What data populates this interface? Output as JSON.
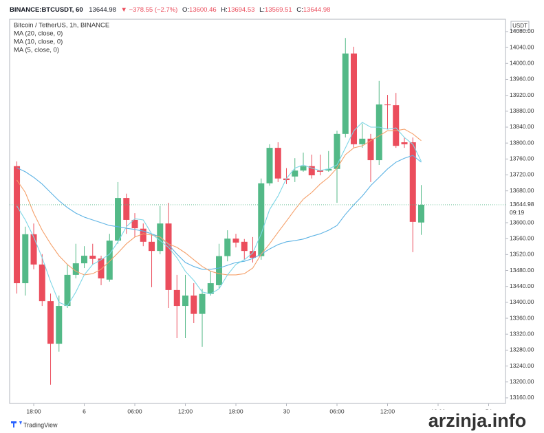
{
  "chart_data": {
    "type": "candlestick",
    "header": {
      "symbol": "BINANCE:BTCUSDT, 60",
      "last": "13644.98",
      "change": "▼ −378.55 (−2.7%)",
      "o_label": "O:",
      "o_value": "13600.46",
      "h_label": "H:",
      "h_value": "13694.53",
      "l_label": "L:",
      "l_value": "13569.51",
      "c_label": "C:",
      "c_value": "13644.98"
    },
    "title": "Bitcoin / TetherUS, 1h, BINANCE",
    "currency": "USDT",
    "countdown": "09:19",
    "last_price": 13644.98,
    "brand": "TradingView",
    "watermark": "arzinja.info",
    "up_color": "#53b987",
    "down_color": "#eb4d5c",
    "x": [
      -2,
      -1,
      0,
      1,
      2,
      3,
      4,
      5,
      6,
      7,
      8,
      9,
      10,
      11,
      12,
      13,
      14,
      15,
      16,
      17,
      18,
      19,
      20,
      21,
      22,
      23,
      24,
      25,
      26,
      27,
      28,
      29,
      30,
      31,
      32,
      33,
      34,
      35,
      36,
      37,
      38,
      39,
      40,
      41,
      42,
      43,
      44,
      45,
      46
    ],
    "open": [
      13742,
      13448,
      13571,
      13495,
      13403,
      13296,
      13391,
      13469,
      13498,
      13517,
      13510,
      13457,
      13555,
      13662,
      13607,
      13585,
      13552,
      13529,
      13598,
      13431,
      13391,
      13417,
      13371,
      13421,
      13443,
      13516,
      13560,
      13552,
      13529,
      13516,
      13699,
      13788,
      13711,
      13716,
      13731,
      13742,
      13731,
      13731,
      13735,
      13823,
      14025,
      13797,
      13811,
      13757,
      13897,
      13895,
      13802,
      13802,
      13600.46
    ],
    "high": [
      13754,
      13590,
      13598,
      13521,
      13422,
      13417,
      13495,
      13547,
      13541,
      13547,
      13517,
      13572,
      13702,
      13673,
      13624,
      13598,
      13572,
      13642,
      13650,
      13469,
      13469,
      13448,
      13434,
      13478,
      13547,
      13581,
      13572,
      13559,
      13564,
      13711,
      13797,
      13802,
      13737,
      13762,
      13776,
      13771,
      13771,
      13780,
      13831,
      14064,
      14042,
      13849,
      13823,
      13956,
      13921,
      13926,
      13814,
      13814,
      13694.53
    ],
    "low": [
      13422,
      13417,
      13483,
      13391,
      13193,
      13276,
      13386,
      13460,
      13486,
      13495,
      13443,
      13452,
      13547,
      13572,
      13564,
      13541,
      13438,
      13521,
      13386,
      13310,
      13310,
      13348,
      13288,
      13417,
      13434,
      13503,
      13538,
      13507,
      13500,
      13507,
      13693,
      13702,
      13697,
      13702,
      13728,
      13711,
      13719,
      13728,
      13650,
      13814,
      13788,
      13788,
      13702,
      13745,
      13835,
      13788,
      13788,
      13526,
      13569.51
    ],
    "close": [
      13448,
      13571,
      13495,
      13403,
      13296,
      13391,
      13469,
      13498,
      13517,
      13509,
      13460,
      13555,
      13662,
      13607,
      13586,
      13552,
      13529,
      13598,
      13431,
      13391,
      13417,
      13371,
      13421,
      13448,
      13516,
      13560,
      13550,
      13529,
      13512,
      13699,
      13788,
      13711,
      13707,
      13731,
      13742,
      13719,
      13728,
      13735,
      13823,
      14025,
      13797,
      13811,
      13757,
      13897,
      13895,
      13793,
      13797,
      13602,
      13644.98
    ],
    "series": [
      {
        "name": "MA (20, close, 0)",
        "color": "#5db3e4",
        "values": [
          13738,
          13728,
          13714,
          13697,
          13676,
          13655,
          13638,
          13624,
          13614,
          13607,
          13600,
          13593,
          13590,
          13586,
          13583,
          13579,
          13572,
          13564,
          13545,
          13521,
          13500,
          13490,
          13483,
          13483,
          13486,
          13493,
          13500,
          13503,
          13510,
          13521,
          13534,
          13545,
          13552,
          13555,
          13559,
          13566,
          13572,
          13581,
          13593,
          13621,
          13645,
          13667,
          13693,
          13714,
          13735,
          13752,
          13762,
          13769,
          13752
        ]
      },
      {
        "name": "MA (10, close, 0)",
        "color": "#f5a06a",
        "values": [
          13707,
          13676,
          13624,
          13581,
          13547,
          13517,
          13495,
          13478,
          13469,
          13472,
          13483,
          13503,
          13524,
          13547,
          13564,
          13572,
          13569,
          13564,
          13547,
          13538,
          13524,
          13507,
          13490,
          13478,
          13472,
          13469,
          13469,
          13472,
          13486,
          13521,
          13547,
          13576,
          13604,
          13633,
          13659,
          13676,
          13697,
          13714,
          13737,
          13771,
          13788,
          13793,
          13806,
          13818,
          13831,
          13831,
          13835,
          13823,
          13806
        ]
      },
      {
        "name": "MA (5, close, 0)",
        "color": "#7dd6e6",
        "values": [
          13642,
          13607,
          13564,
          13512,
          13452,
          13400,
          13391,
          13426,
          13469,
          13495,
          13507,
          13521,
          13552,
          13590,
          13610,
          13607,
          13572,
          13555,
          13538,
          13512,
          13478,
          13455,
          13426,
          13421,
          13434,
          13469,
          13495,
          13507,
          13524,
          13572,
          13633,
          13667,
          13711,
          13737,
          13745,
          13737,
          13731,
          13735,
          13745,
          13788,
          13831,
          13852,
          13840,
          13840,
          13835,
          13838,
          13814,
          13797,
          13754
        ]
      }
    ],
    "xlim": [
      -2.86,
      56
    ],
    "xticks": [
      {
        "value": 0,
        "label": "18:00"
      },
      6,
      {
        "value": 12,
        "label": "06:00"
      },
      {
        "value": 18,
        "label": "12:00"
      },
      {
        "value": 24,
        "label": "18:00"
      },
      30,
      {
        "value": 36,
        "label": "06:00"
      },
      {
        "value": 42,
        "label": "12:00"
      },
      {
        "value": 48,
        "label": "18:00"
      },
      54
    ],
    "ylim": [
      13146,
      14111
    ],
    "yticks": [
      {
        "value": 13160,
        "label": "13160.00"
      },
      {
        "value": 13200,
        "label": "13200.00"
      },
      {
        "value": 13240,
        "label": "13240.00"
      },
      {
        "value": 13280,
        "label": "13280.00"
      },
      {
        "value": 13320,
        "label": "13320.00"
      },
      {
        "value": 13360,
        "label": "13360.00"
      },
      {
        "value": 13400,
        "label": "13400.00"
      },
      {
        "value": 13440,
        "label": "13440.00"
      },
      {
        "value": 13480,
        "label": "13480.00"
      },
      {
        "value": 13520,
        "label": "13520.00"
      },
      {
        "value": 13560,
        "label": "13560.00"
      },
      {
        "value": 13600,
        "label": "13600.00"
      },
      {
        "value": 13680,
        "label": "13680.00"
      },
      {
        "value": 13720,
        "label": "13720.00"
      },
      {
        "value": 13760,
        "label": "13760.00"
      },
      {
        "value": 13800,
        "label": "13800.00"
      },
      {
        "value": 13840,
        "label": "13840.00"
      },
      {
        "value": 13880,
        "label": "13880.00"
      },
      {
        "value": 13920,
        "label": "13920.00"
      },
      {
        "value": 13960,
        "label": "13960.00"
      },
      {
        "value": 14000,
        "label": "14000.00"
      },
      {
        "value": 14040,
        "label": "14040.00"
      },
      {
        "value": 14080,
        "label": "14080.00"
      }
    ],
    "grid": false
  }
}
